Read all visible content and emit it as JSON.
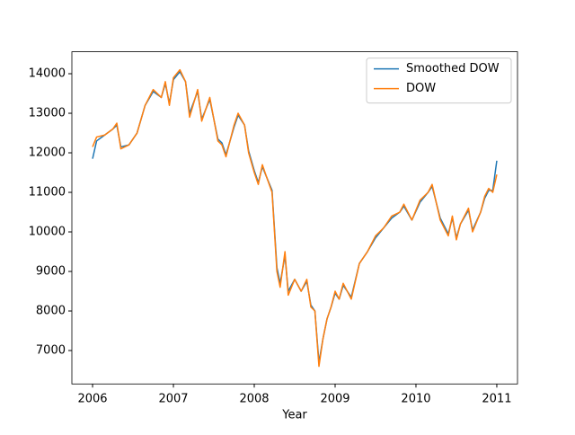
{
  "chart_data": {
    "type": "line",
    "xlabel": "Year",
    "x": [
      2006.0,
      2006.05,
      2006.15,
      2006.25,
      2006.3,
      2006.35,
      2006.45,
      2006.55,
      2006.65,
      2006.75,
      2006.85,
      2006.9,
      2006.95,
      2007.0,
      2007.08,
      2007.15,
      2007.2,
      2007.3,
      2007.35,
      2007.45,
      2007.55,
      2007.6,
      2007.65,
      2007.75,
      2007.8,
      2007.88,
      2007.93,
      2008.0,
      2008.05,
      2008.1,
      2008.15,
      2008.22,
      2008.28,
      2008.32,
      2008.38,
      2008.42,
      2008.5,
      2008.58,
      2008.65,
      2008.7,
      2008.75,
      2008.8,
      2008.85,
      2008.9,
      2008.95,
      2009.0,
      2009.05,
      2009.1,
      2009.2,
      2009.3,
      2009.4,
      2009.5,
      2009.6,
      2009.7,
      2009.8,
      2009.85,
      2009.95,
      2010.05,
      2010.15,
      2010.2,
      2010.3,
      2010.35,
      2010.4,
      2010.45,
      2010.5,
      2010.55,
      2010.65,
      2010.7,
      2010.8,
      2010.85,
      2010.9,
      2010.95,
      2011.0
    ],
    "series": [
      {
        "name": "Smoothed DOW",
        "color": "#1f77b4",
        "values": [
          11850,
          12300,
          12450,
          12600,
          12700,
          12150,
          12200,
          12500,
          13200,
          13550,
          13400,
          13750,
          13250,
          13850,
          14050,
          13800,
          13000,
          13550,
          12850,
          13350,
          12350,
          12250,
          11950,
          12650,
          12950,
          12700,
          12050,
          11550,
          11250,
          11650,
          11400,
          11050,
          9100,
          8700,
          9400,
          8500,
          8800,
          8500,
          8750,
          8150,
          8000,
          6700,
          7300,
          7800,
          8100,
          8450,
          8300,
          8650,
          8350,
          9200,
          9500,
          9850,
          10100,
          10350,
          10500,
          10650,
          10300,
          10750,
          11000,
          11150,
          10350,
          10150,
          9950,
          10350,
          9850,
          10200,
          10550,
          10050,
          10500,
          10850,
          11050,
          11050,
          11800
        ]
      },
      {
        "name": "DOW",
        "color": "#ff7f0e",
        "values": [
          12150,
          12400,
          12450,
          12600,
          12750,
          12100,
          12200,
          12500,
          13200,
          13600,
          13400,
          13800,
          13200,
          13900,
          14100,
          13800,
          12900,
          13600,
          12800,
          13400,
          12300,
          12200,
          11900,
          12700,
          13000,
          12700,
          12000,
          11500,
          11200,
          11700,
          11400,
          11000,
          9000,
          8600,
          9500,
          8400,
          8800,
          8500,
          8800,
          8100,
          8000,
          6600,
          7300,
          7800,
          8100,
          8500,
          8300,
          8700,
          8300,
          9200,
          9500,
          9900,
          10100,
          10400,
          10500,
          10700,
          10300,
          10800,
          11000,
          11200,
          10300,
          10100,
          9900,
          10400,
          9800,
          10200,
          10600,
          10000,
          10500,
          10900,
          11100,
          11000,
          11450
        ]
      }
    ],
    "xlim": [
      2005.744,
      2011.256
    ],
    "xticks": [
      2006,
      2007,
      2008,
      2009,
      2010,
      2011
    ],
    "ylim": [
      6155,
      14555
    ],
    "yticks": [
      7000,
      8000,
      9000,
      10000,
      11000,
      12000,
      13000,
      14000
    ],
    "legend": "upper right"
  }
}
